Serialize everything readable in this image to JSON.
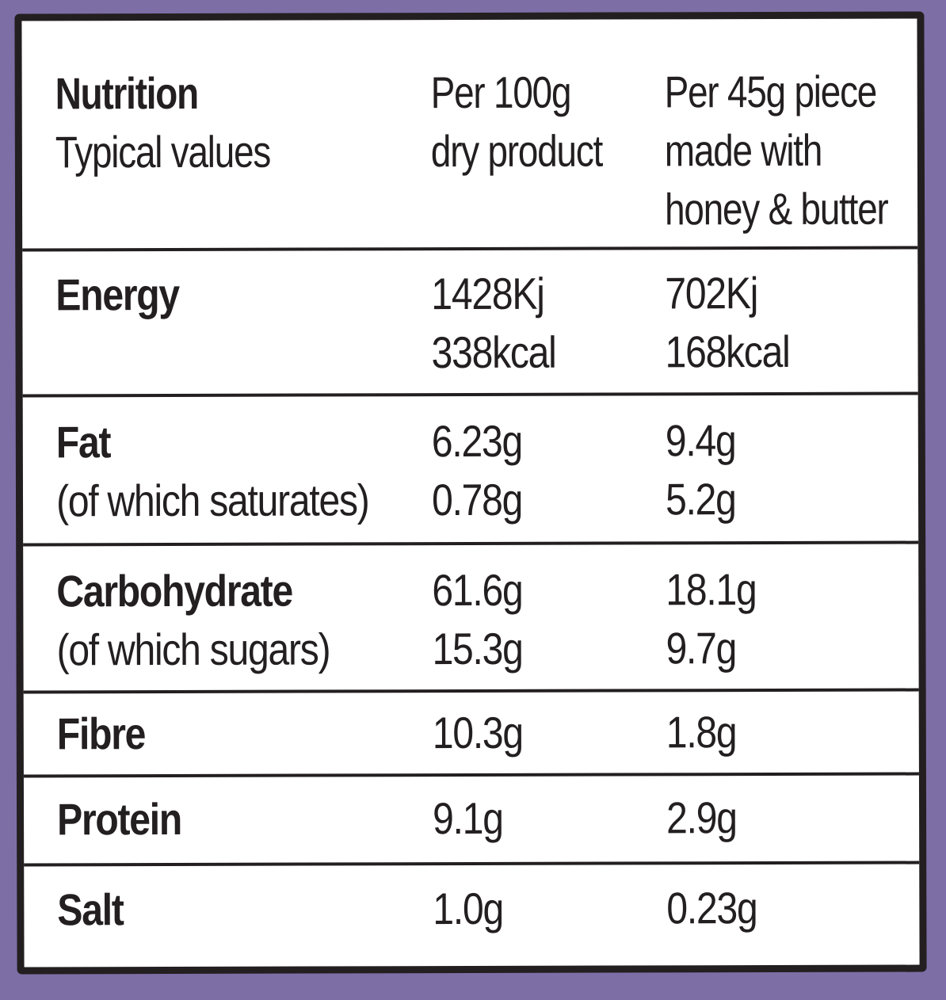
{
  "header": {
    "col1_title": "Nutrition",
    "col1_subtitle": "Typical values",
    "col2_line1": "Per 100g",
    "col2_line2": "dry product",
    "col3_line1": "Per 45g piece",
    "col3_line2": "made with",
    "col3_line3": "honey & butter"
  },
  "rows": [
    {
      "name": "Energy",
      "sub": "",
      "per100_1": "1428Kj",
      "per100_2": "338kcal",
      "per45_1": "702Kj",
      "per45_2": "168kcal"
    },
    {
      "name": "Fat",
      "sub": "(of which saturates)",
      "per100_1": "6.23g",
      "per100_2": "0.78g",
      "per45_1": "9.4g",
      "per45_2": "5.2g"
    },
    {
      "name": "Carbohydrate",
      "sub": "(of which sugars)",
      "per100_1": "61.6g",
      "per100_2": "15.3g",
      "per45_1": "18.1g",
      "per45_2": "9.7g"
    },
    {
      "name": "Fibre",
      "per100_1": "10.3g",
      "per45_1": "1.8g"
    },
    {
      "name": "Protein",
      "per100_1": "9.1g",
      "per45_1": "2.9g"
    },
    {
      "name": "Salt",
      "per100_1": "1.0g",
      "per45_1": "0.23g"
    }
  ],
  "colors": {
    "background": "#7e6ea6",
    "ink": "#231f20",
    "panel": "#ffffff"
  }
}
